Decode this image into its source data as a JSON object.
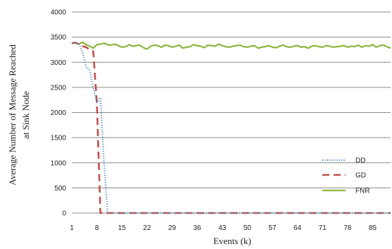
{
  "chart_data": {
    "type": "line",
    "title": "",
    "xlabel": "Events (k)",
    "ylabel_line1": "Average Number of Message Reached",
    "ylabel_line2": "at Sink Node",
    "ylim": [
      0,
      4000
    ],
    "xlim": [
      1,
      90
    ],
    "y_ticks": [
      0,
      500,
      1000,
      1500,
      2000,
      2500,
      3000,
      3500,
      4000
    ],
    "x_ticks": [
      1,
      8,
      15,
      22,
      29,
      36,
      43,
      50,
      57,
      64,
      71,
      78,
      85
    ],
    "grid": "horizontal",
    "legend_position": "right-bottom",
    "series": [
      {
        "name": "DD",
        "color": "#4f81bd",
        "style": "dotted",
        "points": [
          [
            1,
            3380
          ],
          [
            2,
            3390
          ],
          [
            3,
            3360
          ],
          [
            4,
            3200
          ],
          [
            5,
            2900
          ],
          [
            6,
            2850
          ],
          [
            7,
            2500
          ],
          [
            8,
            2200
          ],
          [
            9,
            2300
          ],
          [
            10,
            1000
          ],
          [
            11,
            0
          ],
          [
            90,
            0
          ]
        ]
      },
      {
        "name": "GD",
        "color": "#c0504d",
        "style": "dashed",
        "points": [
          [
            1,
            3380
          ],
          [
            2,
            3390
          ],
          [
            3,
            3360
          ],
          [
            4,
            3320
          ],
          [
            5,
            3300
          ],
          [
            6,
            3250
          ],
          [
            7,
            3220
          ],
          [
            8,
            2200
          ],
          [
            9,
            0
          ],
          [
            10,
            0
          ],
          [
            90,
            0
          ]
        ]
      },
      {
        "name": "FNR",
        "color": "#8db53c",
        "style": "solid",
        "points": [
          [
            1,
            3380
          ],
          [
            2,
            3390
          ],
          [
            3,
            3360
          ],
          [
            4,
            3400
          ],
          [
            5,
            3350
          ],
          [
            6,
            3320
          ],
          [
            7,
            3280
          ],
          [
            8,
            3350
          ],
          [
            9,
            3360
          ],
          [
            10,
            3380
          ],
          [
            11,
            3350
          ],
          [
            12,
            3340
          ],
          [
            13,
            3360
          ],
          [
            14,
            3330
          ],
          [
            15,
            3300
          ],
          [
            16,
            3310
          ],
          [
            17,
            3350
          ],
          [
            18,
            3320
          ],
          [
            19,
            3330
          ],
          [
            20,
            3340
          ],
          [
            21,
            3290
          ],
          [
            22,
            3260
          ],
          [
            23,
            3320
          ],
          [
            24,
            3340
          ],
          [
            25,
            3330
          ],
          [
            26,
            3300
          ],
          [
            27,
            3340
          ],
          [
            28,
            3330
          ],
          [
            29,
            3300
          ],
          [
            30,
            3320
          ],
          [
            31,
            3340
          ],
          [
            32,
            3280
          ],
          [
            33,
            3300
          ],
          [
            34,
            3310
          ],
          [
            35,
            3350
          ],
          [
            36,
            3330
          ],
          [
            37,
            3320
          ],
          [
            38,
            3290
          ],
          [
            39,
            3340
          ],
          [
            40,
            3330
          ],
          [
            41,
            3320
          ],
          [
            42,
            3360
          ],
          [
            43,
            3330
          ],
          [
            44,
            3310
          ],
          [
            45,
            3300
          ],
          [
            46,
            3320
          ],
          [
            47,
            3330
          ],
          [
            48,
            3340
          ],
          [
            49,
            3310
          ],
          [
            50,
            3300
          ],
          [
            51,
            3320
          ],
          [
            52,
            3330
          ],
          [
            53,
            3280
          ],
          [
            54,
            3300
          ],
          [
            55,
            3310
          ],
          [
            56,
            3330
          ],
          [
            57,
            3300
          ],
          [
            58,
            3290
          ],
          [
            59,
            3320
          ],
          [
            60,
            3340
          ],
          [
            61,
            3310
          ],
          [
            62,
            3300
          ],
          [
            63,
            3320
          ],
          [
            64,
            3330
          ],
          [
            65,
            3300
          ],
          [
            66,
            3310
          ],
          [
            67,
            3280
          ],
          [
            68,
            3320
          ],
          [
            69,
            3330
          ],
          [
            70,
            3310
          ],
          [
            71,
            3300
          ],
          [
            72,
            3330
          ],
          [
            73,
            3320
          ],
          [
            74,
            3300
          ],
          [
            75,
            3310
          ],
          [
            76,
            3320
          ],
          [
            77,
            3330
          ],
          [
            78,
            3300
          ],
          [
            79,
            3320
          ],
          [
            80,
            3310
          ],
          [
            81,
            3340
          ],
          [
            82,
            3300
          ],
          [
            83,
            3330
          ],
          [
            84,
            3320
          ],
          [
            85,
            3350
          ],
          [
            86,
            3300
          ],
          [
            87,
            3330
          ],
          [
            88,
            3340
          ],
          [
            89,
            3310
          ],
          [
            90,
            3280
          ]
        ]
      }
    ]
  }
}
